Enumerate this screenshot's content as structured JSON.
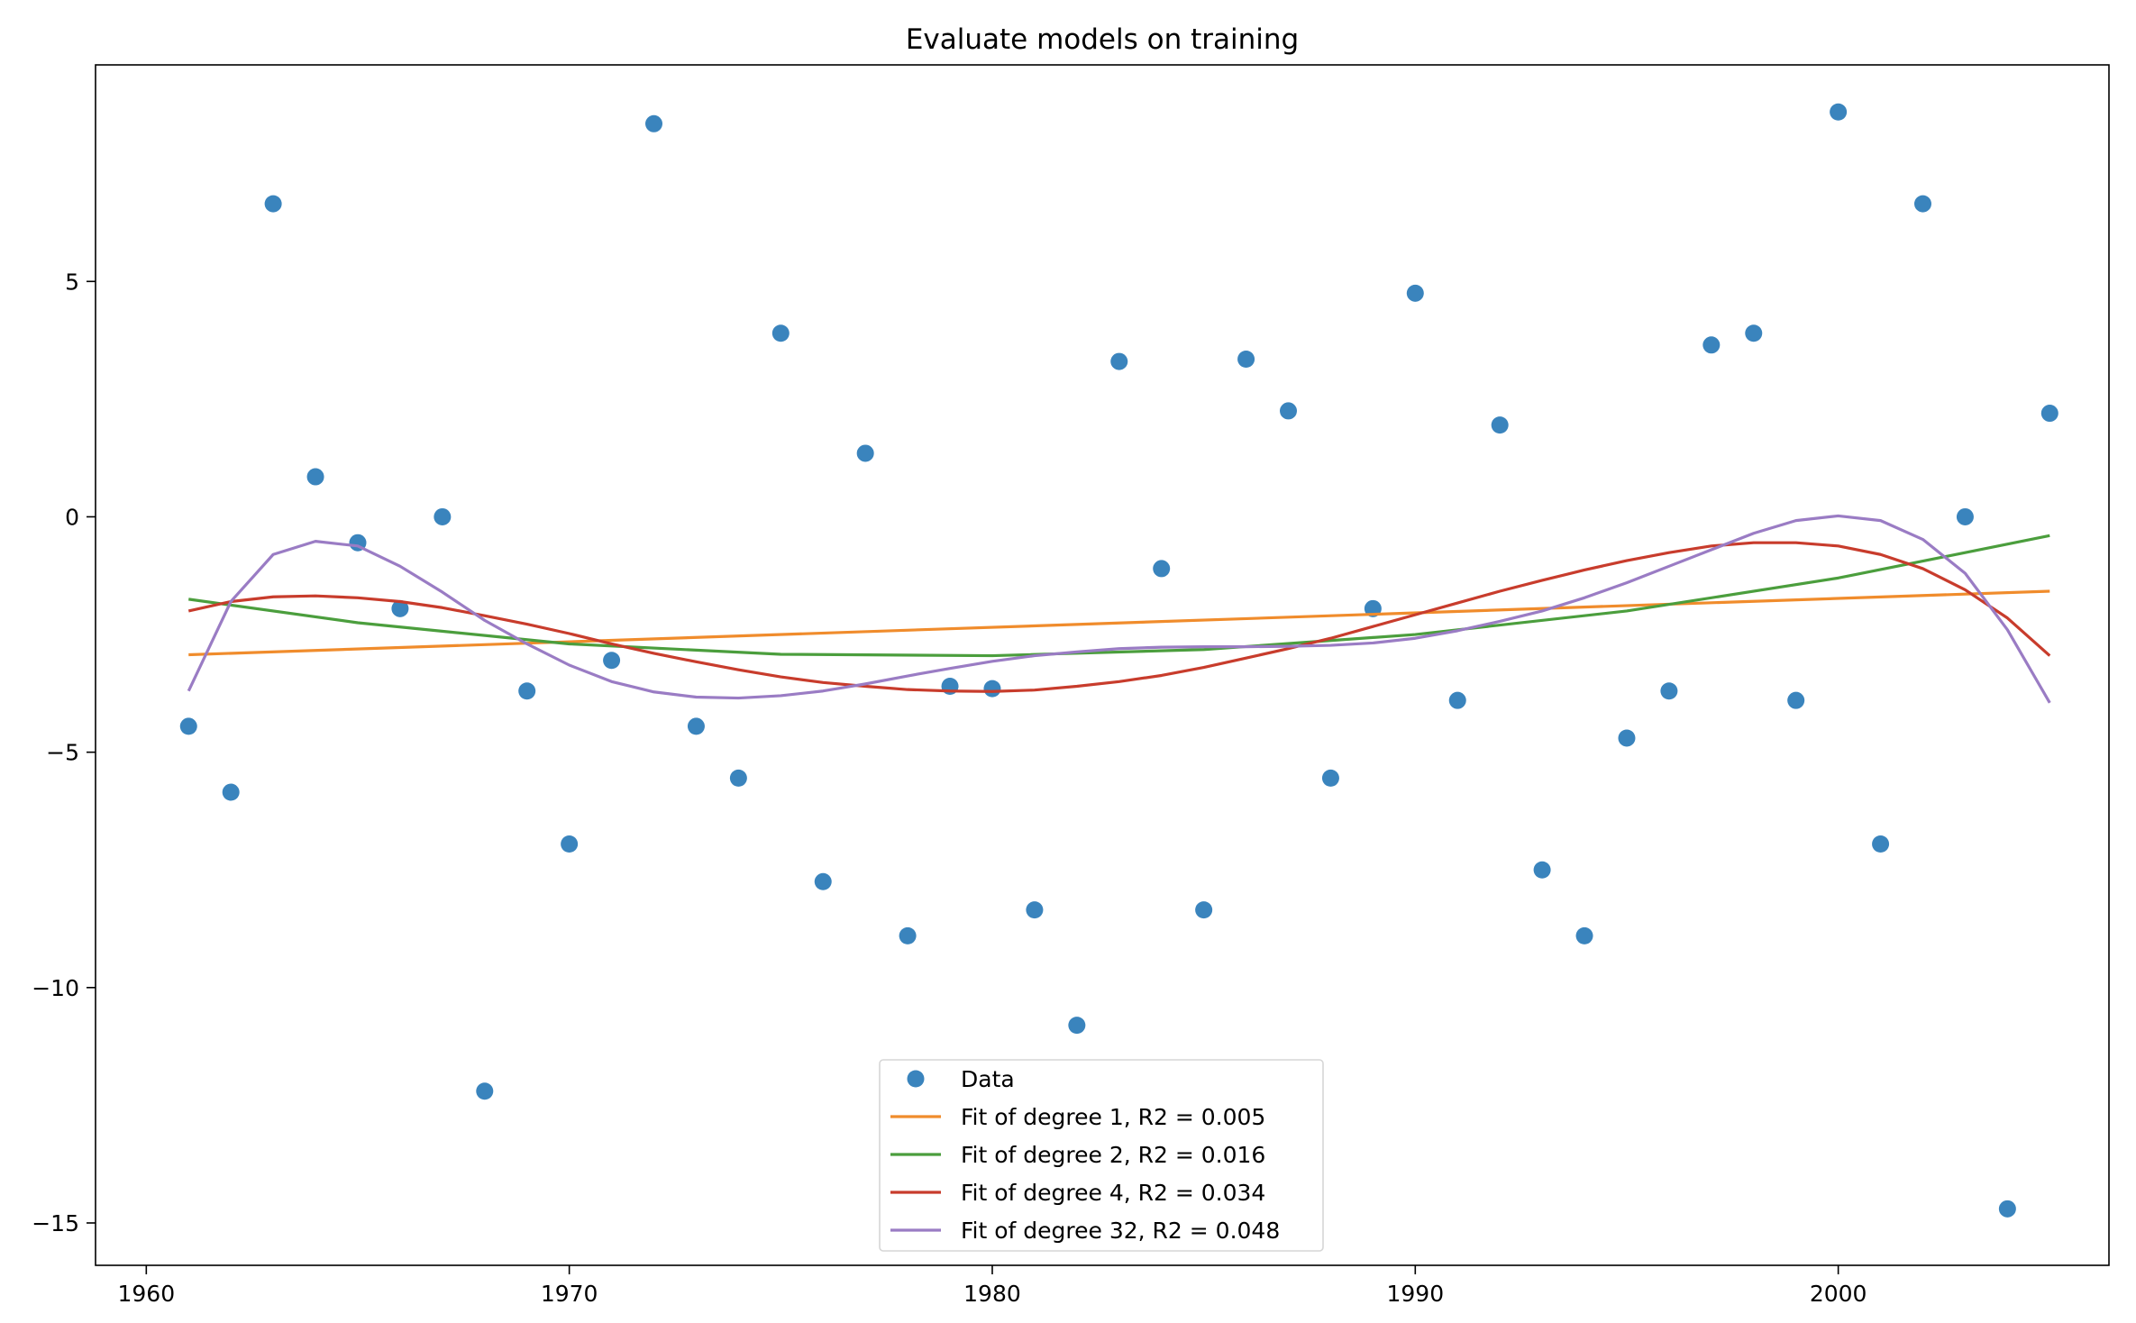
{
  "chart_data": {
    "type": "scatter",
    "title": "Evaluate models on training",
    "xlabel": "",
    "ylabel": "",
    "xlim": [
      1958.8,
      2006.4
    ],
    "ylim": [
      -15.9,
      9.6
    ],
    "xticks": [
      1960,
      1970,
      1980,
      1990,
      2000
    ],
    "xtick_labels": [
      "1960",
      "1970",
      "1980",
      "1990",
      "2000"
    ],
    "yticks": [
      5,
      0,
      -5,
      -10,
      -15
    ],
    "ytick_labels": [
      "5",
      "0",
      "−5",
      "−10",
      "−15"
    ],
    "grid": false,
    "legend_position": "lower-center",
    "data": {
      "name": "Data",
      "color": "#3a84bd",
      "points": [
        [
          1961,
          -4.45
        ],
        [
          1962,
          -5.85
        ],
        [
          1963,
          6.65
        ],
        [
          1964,
          0.85
        ],
        [
          1965,
          -0.55
        ],
        [
          1966,
          -1.95
        ],
        [
          1967,
          0.0
        ],
        [
          1968,
          -12.2
        ],
        [
          1969,
          -3.7
        ],
        [
          1970,
          -6.95
        ],
        [
          1971,
          -3.05
        ],
        [
          1972,
          8.35
        ],
        [
          1973,
          -4.45
        ],
        [
          1974,
          -5.55
        ],
        [
          1975,
          3.9
        ],
        [
          1976,
          -7.75
        ],
        [
          1977,
          1.35
        ],
        [
          1978,
          -8.9
        ],
        [
          1979,
          -3.6
        ],
        [
          1980,
          -3.65
        ],
        [
          1981,
          -8.35
        ],
        [
          1982,
          -10.8
        ],
        [
          1983,
          3.3
        ],
        [
          1984,
          -1.1
        ],
        [
          1985,
          -8.35
        ],
        [
          1986,
          3.35
        ],
        [
          1987,
          2.25
        ],
        [
          1988,
          -5.55
        ],
        [
          1989,
          -1.95
        ],
        [
          1990,
          4.75
        ],
        [
          1991,
          -3.9
        ],
        [
          1992,
          1.95
        ],
        [
          1993,
          -7.5
        ],
        [
          1994,
          -8.9
        ],
        [
          1995,
          -4.7
        ],
        [
          1996,
          -3.7
        ],
        [
          1997,
          3.65
        ],
        [
          1998,
          3.9
        ],
        [
          1999,
          -3.9
        ],
        [
          2000,
          8.6
        ],
        [
          2001,
          -6.95
        ],
        [
          2002,
          6.65
        ],
        [
          2003,
          0.0
        ],
        [
          2004,
          -14.7
        ],
        [
          2005,
          2.2
        ]
      ]
    },
    "series": [
      {
        "name": "Fit of degree 1, R2 = 0.005",
        "color": "#f08c2c",
        "x": [
          1961,
          2005
        ],
        "y": [
          -2.93,
          -1.58
        ]
      },
      {
        "name": "Fit of degree 2, R2 = 0.016",
        "color": "#4b9e3d",
        "x": [
          1961,
          1965,
          1970,
          1975,
          1980,
          1985,
          1990,
          1995,
          2000,
          2005
        ],
        "y": [
          -1.75,
          -2.25,
          -2.7,
          -2.92,
          -2.95,
          -2.82,
          -2.5,
          -2.0,
          -1.3,
          -0.4
        ]
      },
      {
        "name": "Fit of degree 4, R2 = 0.034",
        "color": "#c83c2c",
        "x": [
          1961,
          1962,
          1963,
          1964,
          1965,
          1966,
          1967,
          1968,
          1969,
          1970,
          1971,
          1972,
          1973,
          1974,
          1975,
          1976,
          1977,
          1978,
          1979,
          1980,
          1981,
          1982,
          1983,
          1984,
          1985,
          1986,
          1987,
          1988,
          1989,
          1990,
          1991,
          1992,
          1993,
          1994,
          1995,
          1996,
          1997,
          1998,
          1999,
          2000,
          2001,
          2002,
          2003,
          2004,
          2005
        ],
        "y": [
          -2.0,
          -1.8,
          -1.7,
          -1.68,
          -1.72,
          -1.8,
          -1.93,
          -2.1,
          -2.28,
          -2.48,
          -2.7,
          -2.9,
          -3.08,
          -3.25,
          -3.4,
          -3.52,
          -3.6,
          -3.67,
          -3.7,
          -3.71,
          -3.68,
          -3.6,
          -3.5,
          -3.37,
          -3.2,
          -3.0,
          -2.8,
          -2.58,
          -2.33,
          -2.08,
          -1.83,
          -1.58,
          -1.35,
          -1.13,
          -0.93,
          -0.76,
          -0.62,
          -0.55,
          -0.55,
          -0.62,
          -0.8,
          -1.1,
          -1.55,
          -2.15,
          -2.95
        ]
      },
      {
        "name": "Fit of degree 32, R2 = 0.048",
        "color": "#9a7cc4",
        "x": [
          1961,
          1962,
          1963,
          1964,
          1965,
          1966,
          1967,
          1968,
          1969,
          1970,
          1971,
          1972,
          1973,
          1974,
          1975,
          1976,
          1977,
          1978,
          1979,
          1980,
          1981,
          1982,
          1983,
          1984,
          1985,
          1986,
          1987,
          1988,
          1989,
          1990,
          1991,
          1992,
          1993,
          1994,
          1995,
          1996,
          1997,
          1998,
          1999,
          2000,
          2001,
          2002,
          2003,
          2004,
          2005
        ],
        "y": [
          -3.7,
          -1.8,
          -0.8,
          -0.52,
          -0.62,
          -1.05,
          -1.6,
          -2.2,
          -2.7,
          -3.15,
          -3.5,
          -3.72,
          -3.83,
          -3.85,
          -3.8,
          -3.7,
          -3.55,
          -3.38,
          -3.22,
          -3.07,
          -2.95,
          -2.87,
          -2.8,
          -2.77,
          -2.76,
          -2.76,
          -2.75,
          -2.73,
          -2.68,
          -2.58,
          -2.42,
          -2.22,
          -2.0,
          -1.72,
          -1.4,
          -1.05,
          -0.7,
          -0.35,
          -0.08,
          0.02,
          -0.08,
          -0.48,
          -1.2,
          -2.4,
          -3.95
        ]
      }
    ]
  }
}
